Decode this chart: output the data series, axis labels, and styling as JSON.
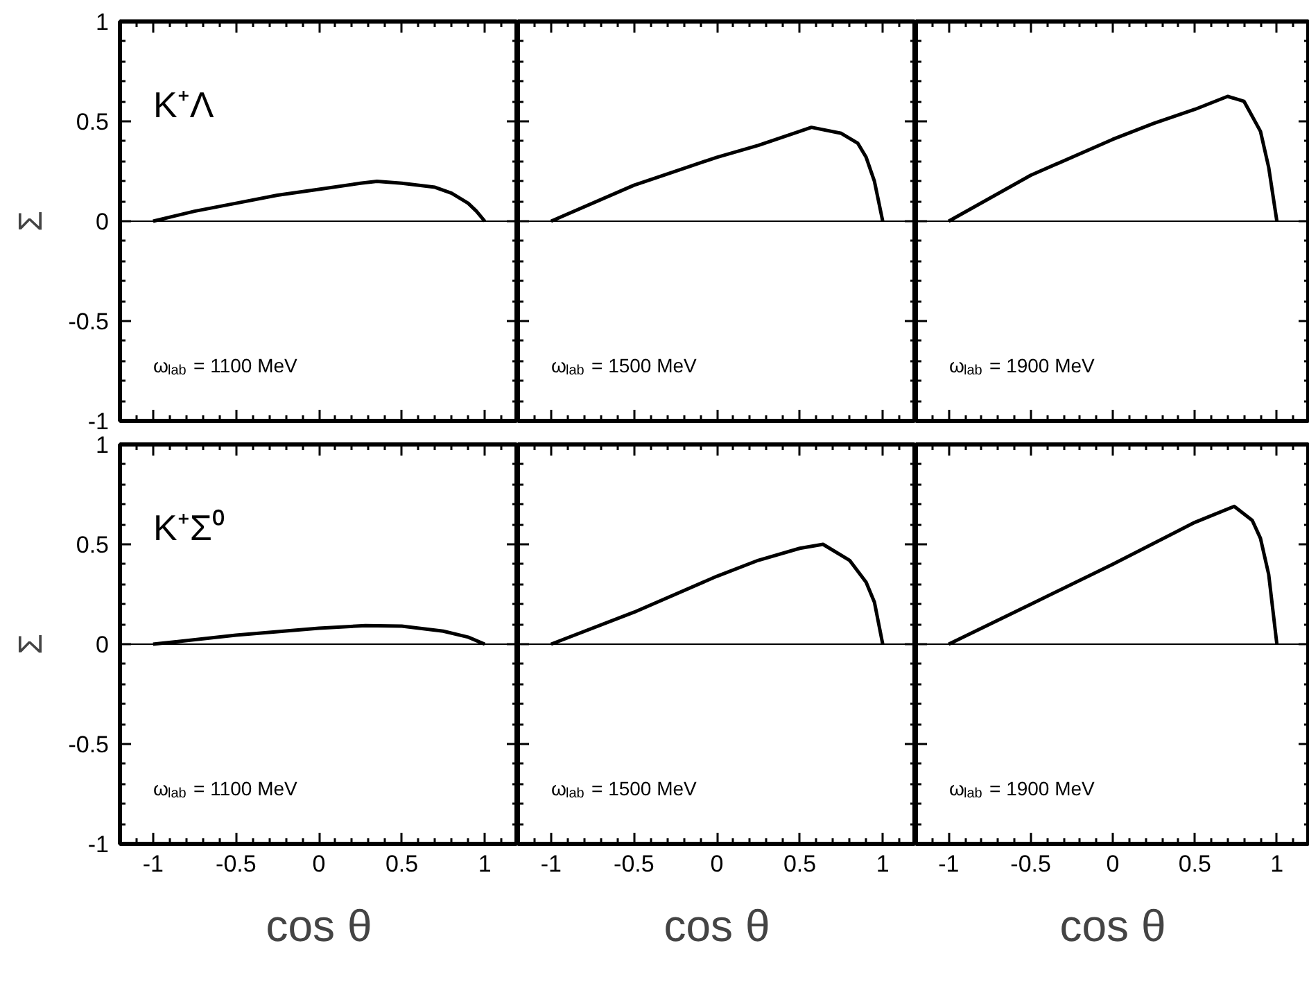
{
  "chart_data": [
    {
      "type": "line",
      "ylabel": "Σ",
      "xlim": [
        -1.2,
        1.2
      ],
      "ylim": [
        -1,
        1
      ],
      "xticks": [
        -1,
        -0.5,
        0,
        0.5,
        1
      ],
      "yticks": [
        -1,
        -0.5,
        0,
        0.5,
        1
      ],
      "tick_labels": "y",
      "annotations": [
        "K⁺Λ",
        "ω$_{lab}$ = 1100 MeV"
      ],
      "ref_lines": [
        {
          "axis": "y",
          "value": 0
        }
      ],
      "x": [
        -1,
        -0.75,
        -0.5,
        -0.25,
        0,
        0.25,
        0.35,
        0.5,
        0.7,
        0.8,
        0.9,
        0.95,
        1
      ],
      "series": [
        {
          "color": "#000000",
          "values": [
            0,
            0.05,
            0.09,
            0.13,
            0.16,
            0.19,
            0.2,
            0.19,
            0.17,
            0.14,
            0.09,
            0.05,
            0
          ]
        }
      ]
    },
    {
      "type": "line",
      "xlim": [
        -1.2,
        1.2
      ],
      "ylim": [
        -1,
        1
      ],
      "xticks": [
        -1,
        -0.5,
        0,
        0.5,
        1
      ],
      "yticks": [
        -1,
        -0.5,
        0,
        0.5,
        1
      ],
      "tick_labels": false,
      "annotations": [
        "ω$_{lab}$ = 1500 MeV"
      ],
      "ref_lines": [
        {
          "axis": "y",
          "value": 0
        }
      ],
      "x": [
        -1,
        -0.5,
        0,
        0.25,
        0.5,
        0.57,
        0.75,
        0.85,
        0.9,
        0.95,
        1
      ],
      "series": [
        {
          "color": "#000000",
          "values": [
            0,
            0.18,
            0.32,
            0.38,
            0.45,
            0.47,
            0.44,
            0.39,
            0.32,
            0.2,
            0
          ]
        }
      ]
    },
    {
      "type": "line",
      "xlim": [
        -1.2,
        1.2
      ],
      "ylim": [
        -1,
        1
      ],
      "xticks": [
        -1,
        -0.5,
        0,
        0.5,
        1
      ],
      "yticks": [
        -1,
        -0.5,
        0,
        0.5,
        1
      ],
      "tick_labels": false,
      "annotations": [
        "ω$_{lab}$ = 1900 MeV"
      ],
      "ref_lines": [
        {
          "axis": "y",
          "value": 0
        }
      ],
      "x": [
        -1,
        -0.5,
        0,
        0.25,
        0.5,
        0.7,
        0.8,
        0.9,
        0.95,
        1
      ],
      "series": [
        {
          "color": "#000000",
          "values": [
            0,
            0.23,
            0.41,
            0.49,
            0.56,
            0.625,
            0.6,
            0.45,
            0.27,
            0
          ]
        }
      ]
    },
    {
      "type": "line",
      "ylabel": "Σ",
      "xlabel": "cos θ",
      "xlim": [
        -1.2,
        1.2
      ],
      "ylim": [
        -1,
        1
      ],
      "xticks": [
        -1,
        -0.5,
        0,
        0.5,
        1
      ],
      "yticks": [
        -1,
        -0.5,
        0,
        0.5,
        1
      ],
      "annotations": [
        "K⁺Σ⁰",
        "ω$_{lab}$ = 1100 MeV"
      ],
      "ref_lines": [
        {
          "axis": "y",
          "value": 0
        }
      ],
      "x": [
        -1,
        -0.5,
        0,
        0.28,
        0.5,
        0.75,
        0.9,
        1
      ],
      "series": [
        {
          "color": "#000000",
          "values": [
            0,
            0.045,
            0.08,
            0.093,
            0.09,
            0.065,
            0.035,
            0
          ]
        }
      ]
    },
    {
      "type": "line",
      "xlabel": "cos θ",
      "xlim": [
        -1.2,
        1.2
      ],
      "ylim": [
        -1,
        1
      ],
      "xticks": [
        -1,
        -0.5,
        0,
        0.5,
        1
      ],
      "yticks": [
        -1,
        -0.5,
        0,
        0.5,
        1
      ],
      "tick_labels": "x",
      "annotations": [
        "ω$_{lab}$ = 1500 MeV"
      ],
      "ref_lines": [
        {
          "axis": "y",
          "value": 0
        }
      ],
      "x": [
        -1,
        -0.5,
        0,
        0.25,
        0.5,
        0.64,
        0.8,
        0.9,
        0.95,
        1
      ],
      "series": [
        {
          "color": "#000000",
          "values": [
            0,
            0.16,
            0.34,
            0.42,
            0.48,
            0.5,
            0.42,
            0.31,
            0.21,
            0
          ]
        }
      ]
    },
    {
      "type": "line",
      "xlabel": "cos θ",
      "xlim": [
        -1.2,
        1.2
      ],
      "ylim": [
        -1,
        1
      ],
      "xticks": [
        -1,
        -0.5,
        0,
        0.5,
        1
      ],
      "yticks": [
        -1,
        -0.5,
        0,
        0.5,
        1
      ],
      "tick_labels": "x",
      "annotations": [
        "ω$_{lab}$ = 1900 MeV"
      ],
      "ref_lines": [
        {
          "axis": "y",
          "value": 0
        }
      ],
      "x": [
        -1,
        -0.5,
        0,
        0.5,
        0.74,
        0.85,
        0.9,
        0.95,
        1
      ],
      "series": [
        {
          "color": "#000000",
          "values": [
            0,
            0.2,
            0.4,
            0.61,
            0.69,
            0.62,
            0.53,
            0.35,
            0
          ]
        }
      ]
    }
  ]
}
